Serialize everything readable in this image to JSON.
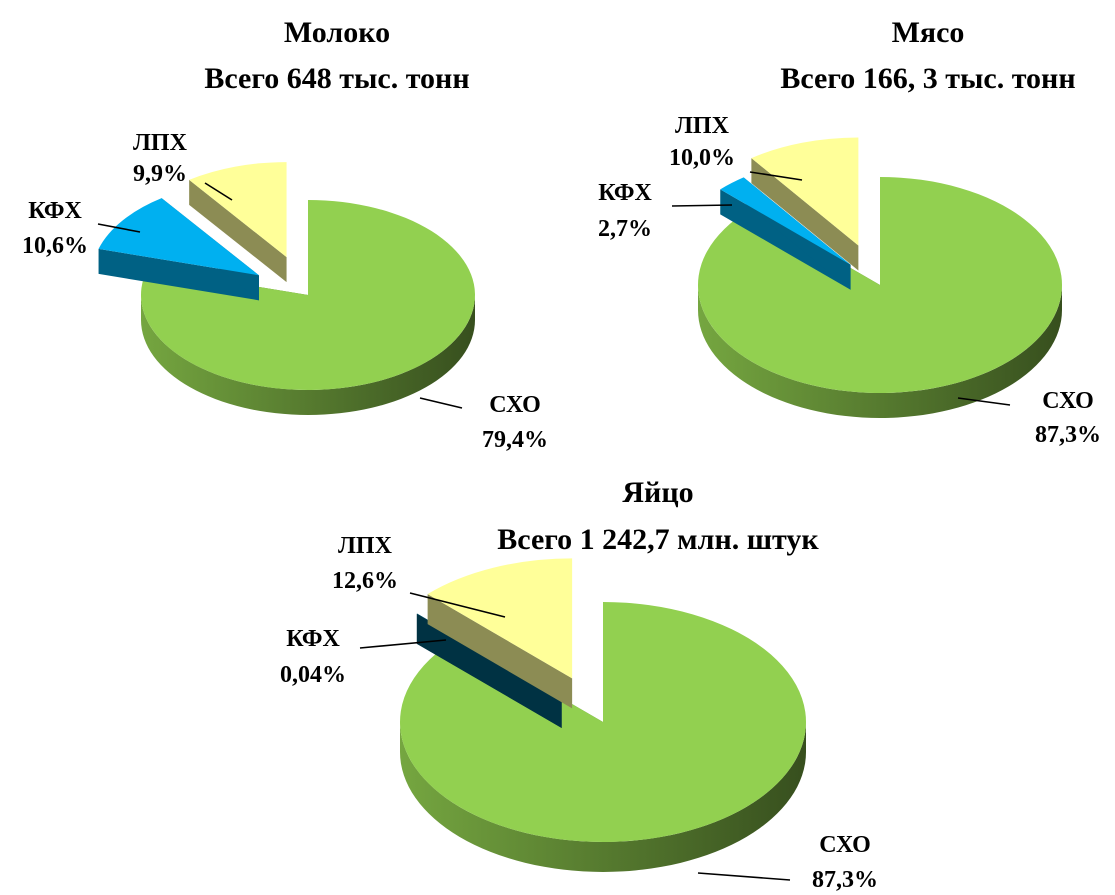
{
  "chart_data": [
    {
      "type": "pie",
      "title": "Молоко",
      "subtitle": "Всего 648 тыс. тонн",
      "slices": [
        {
          "key": "sxo",
          "name": "СХО",
          "value": 79.4,
          "value_label": "79,4%",
          "color": "#92D050"
        },
        {
          "key": "kfx",
          "name": "КФХ",
          "value": 10.6,
          "value_label": "10,6%",
          "color": "#00B0F0"
        },
        {
          "key": "lph",
          "name": "ЛПХ",
          "value": 9.9,
          "value_label": "9,9%",
          "color": "#FFFF99"
        }
      ]
    },
    {
      "type": "pie",
      "title": "Мясо",
      "subtitle": "Всего 166, 3 тыс. тонн",
      "slices": [
        {
          "key": "sxo",
          "name": "СХО",
          "value": 87.3,
          "value_label": "87,3%",
          "color": "#92D050"
        },
        {
          "key": "kfx",
          "name": "КФХ",
          "value": 2.7,
          "value_label": "2,7%",
          "color": "#00B0F0"
        },
        {
          "key": "lph",
          "name": "ЛПХ",
          "value": 10.0,
          "value_label": "10,0%",
          "color": "#FFFF99"
        }
      ]
    },
    {
      "type": "pie",
      "title": "Яйцо",
      "subtitle": "Всего 1 242,7 млн. штук",
      "slices": [
        {
          "key": "sxo",
          "name": "СХО",
          "value": 87.3,
          "value_label": "87,3%",
          "color": "#92D050"
        },
        {
          "key": "kfx",
          "name": "КФХ",
          "value": 0.04,
          "value_label": "0,04%",
          "color": "#005A7A"
        },
        {
          "key": "lph",
          "name": "ЛПХ",
          "value": 12.6,
          "value_label": "12,6%",
          "color": "#FFFF99"
        }
      ]
    }
  ]
}
